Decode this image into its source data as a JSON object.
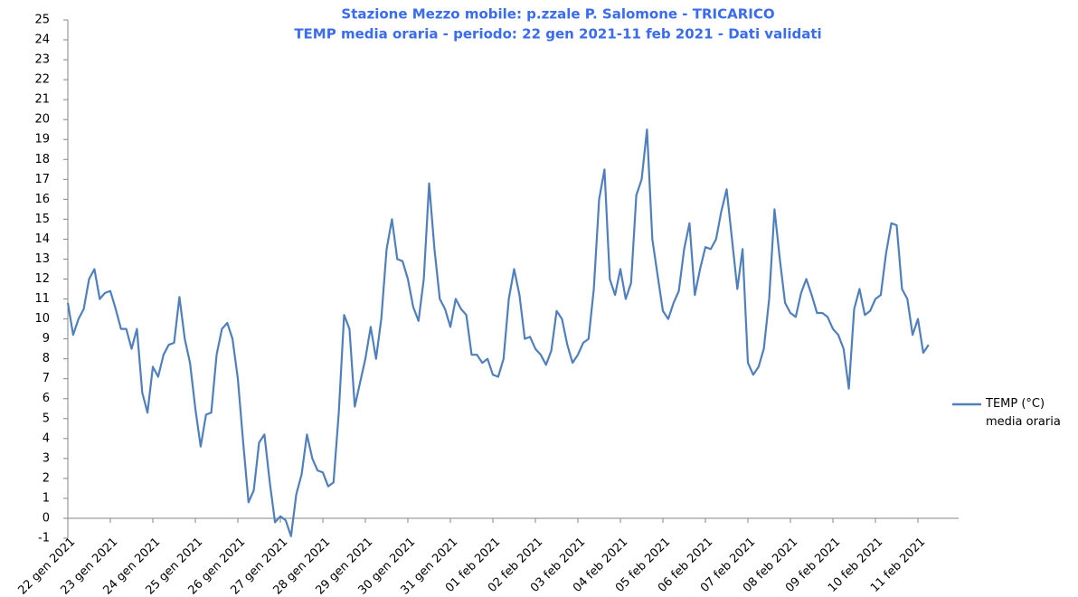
{
  "chart_data": {
    "type": "line",
    "title": "Stazione Mezzo mobile: p.zzale P. Salomone - TRICARICO",
    "subtitle": "TEMP  media oraria - periodo: 22 gen 2021-11  feb 2021 - Dati validati",
    "categories": [
      "22 gen 2021",
      null,
      null,
      null,
      null,
      null,
      null,
      null,
      "23 gen 2021",
      null,
      null,
      null,
      null,
      null,
      null,
      null,
      "24 gen 2021",
      null,
      null,
      null,
      null,
      null,
      null,
      null,
      "25 gen 2021",
      null,
      null,
      null,
      null,
      null,
      null,
      null,
      "26 gen 2021",
      null,
      null,
      null,
      null,
      null,
      null,
      null,
      "27 gen 2021",
      null,
      null,
      null,
      null,
      null,
      null,
      null,
      "28 gen 2021",
      null,
      null,
      null,
      null,
      null,
      null,
      null,
      "29 gen 2021",
      null,
      null,
      null,
      null,
      null,
      null,
      null,
      "30 gen 2021",
      null,
      null,
      null,
      null,
      null,
      null,
      null,
      "31 gen 2021",
      null,
      null,
      null,
      null,
      null,
      null,
      null,
      "01 feb 2021",
      null,
      null,
      null,
      null,
      null,
      null,
      null,
      "02 feb 2021",
      null,
      null,
      null,
      null,
      null,
      null,
      null,
      "03 feb 2021",
      null,
      null,
      null,
      null,
      null,
      null,
      null,
      "04 feb 2021",
      null,
      null,
      null,
      null,
      null,
      null,
      null,
      "05 feb 2021",
      null,
      null,
      null,
      null,
      null,
      null,
      null,
      "06 feb 2021",
      null,
      null,
      null,
      null,
      null,
      null,
      null,
      "07 feb 2021",
      null,
      null,
      null,
      null,
      null,
      null,
      null,
      "08 feb 2021",
      null,
      null,
      null,
      null,
      null,
      null,
      null,
      "09 feb 2021",
      null,
      null,
      null,
      null,
      null,
      null,
      null,
      "10 feb 2021",
      null,
      null,
      null,
      null,
      null,
      null,
      null,
      "11 feb 2021",
      null,
      null
    ],
    "series": [
      {
        "name": "TEMP (°C) media oraria",
        "color": "#4f7fbd",
        "values": [
          10.8,
          9.2,
          10.0,
          10.5,
          12.0,
          12.5,
          11.0,
          11.3,
          11.4,
          10.5,
          9.5,
          9.5,
          8.5,
          9.5,
          6.3,
          5.3,
          7.6,
          7.1,
          8.2,
          8.7,
          8.8,
          11.1,
          9.0,
          7.8,
          5.5,
          3.6,
          5.2,
          5.3,
          8.2,
          9.5,
          9.8,
          9.0,
          7.0,
          3.8,
          0.8,
          1.4,
          3.8,
          4.2,
          1.8,
          -0.2,
          0.1,
          -0.1,
          -0.9,
          1.2,
          2.2,
          4.2,
          3.0,
          2.4,
          2.3,
          1.6,
          1.8,
          5.3,
          10.2,
          9.5,
          5.6,
          6.8,
          8.0,
          9.6,
          8.0,
          10.0,
          13.5,
          15.0,
          13.0,
          12.9,
          12.0,
          10.6,
          9.9,
          12.0,
          16.8,
          13.5,
          11.0,
          10.5,
          9.6,
          11.0,
          10.5,
          10.2,
          8.2,
          8.2,
          7.8,
          8.0,
          7.2,
          7.1,
          8.0,
          11.0,
          12.5,
          11.2,
          9.0,
          9.1,
          8.5,
          8.2,
          7.7,
          8.4,
          10.4,
          10.0,
          8.7,
          7.8,
          8.2,
          8.8,
          9.0,
          11.5,
          16.0,
          17.5,
          12.0,
          11.2,
          12.5,
          11.0,
          11.8,
          16.2,
          17.0,
          19.5,
          14.0,
          12.2,
          10.4,
          10.0,
          10.8,
          11.4,
          13.5,
          14.8,
          11.2,
          12.5,
          13.6,
          13.5,
          14.0,
          15.4,
          16.5,
          14.0,
          11.5,
          13.5,
          7.8,
          7.2,
          7.6,
          8.5,
          11.0,
          15.5,
          13.0,
          10.8,
          10.3,
          10.1,
          11.3,
          12.0,
          11.2,
          10.3,
          10.3,
          10.1,
          9.5,
          9.2,
          8.5,
          6.5,
          10.5,
          11.5,
          10.2,
          10.4,
          11.0,
          11.2,
          13.3,
          14.8,
          14.7,
          11.5,
          11.0,
          9.2,
          10.0,
          8.3,
          8.7
        ]
      }
    ],
    "ylim": [
      -1,
      25
    ],
    "yticks": [
      -1,
      0,
      1,
      2,
      3,
      4,
      5,
      6,
      7,
      8,
      9,
      10,
      11,
      12,
      13,
      14,
      15,
      16,
      17,
      18,
      19,
      20,
      21,
      22,
      23,
      24,
      25
    ]
  }
}
